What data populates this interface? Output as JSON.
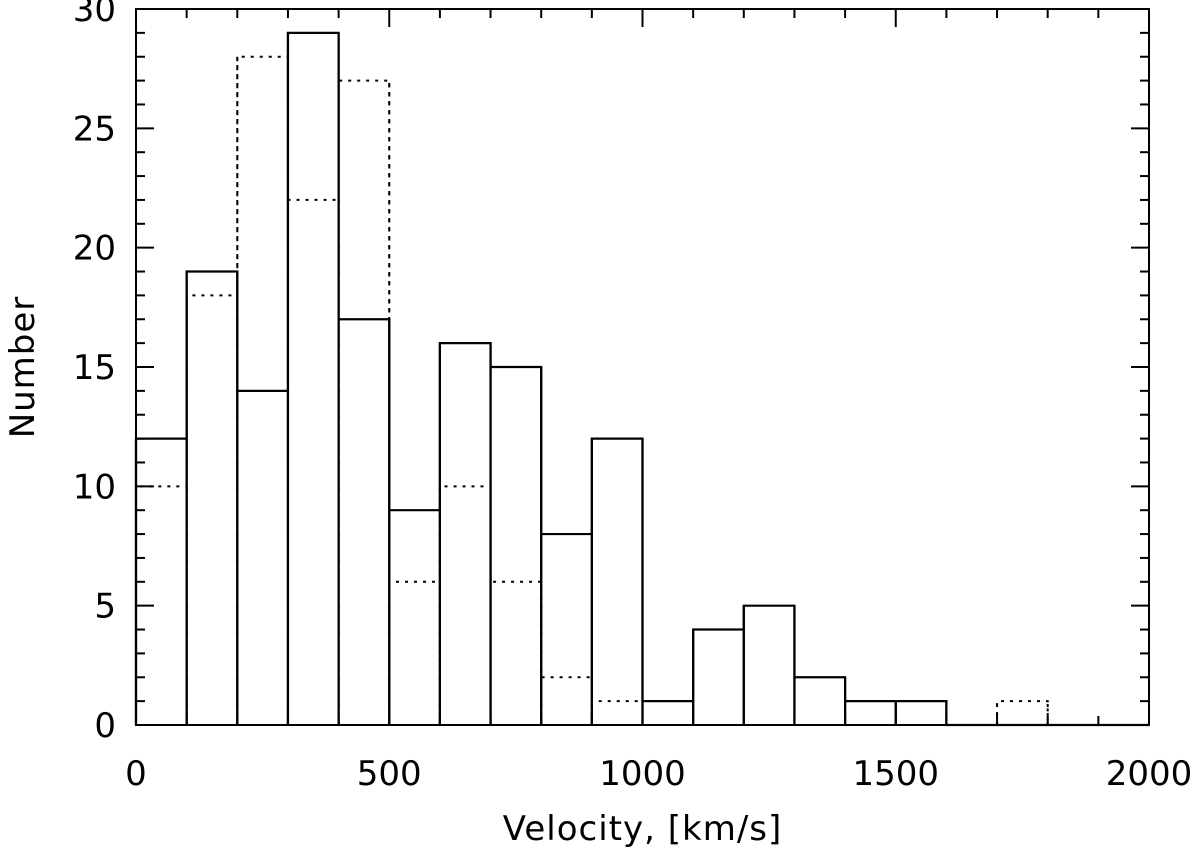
{
  "chart_data": {
    "type": "bar",
    "style": "histogram",
    "xlabel": "Velocity, [km/s]",
    "ylabel": "Number",
    "xlim": [
      0,
      2000
    ],
    "ylim": [
      0,
      30
    ],
    "bin_width": 100,
    "x_ticks": [
      "0",
      "500",
      "1000",
      "1500",
      "2000"
    ],
    "y_ticks": [
      "0",
      "5",
      "10",
      "15",
      "20",
      "25",
      "30"
    ],
    "grid": false,
    "series": [
      {
        "line": "solid",
        "bin_starts": [
          0,
          100,
          200,
          300,
          400,
          500,
          600,
          700,
          800,
          900,
          1000,
          1100,
          1200,
          1300,
          1400,
          1500,
          1600,
          1700,
          1800,
          1900
        ],
        "values": [
          12,
          19,
          14,
          29,
          17,
          9,
          16,
          15,
          8,
          12,
          1,
          4,
          5,
          2,
          1,
          1,
          0,
          0,
          0,
          0
        ]
      },
      {
        "line": "dotted",
        "bin_starts": [
          0,
          100,
          200,
          300,
          400,
          500,
          600,
          700,
          800,
          900,
          1000,
          1100,
          1200,
          1300,
          1400,
          1500,
          1600,
          1700,
          1800,
          1900
        ],
        "values": [
          10,
          18,
          28,
          22,
          27,
          6,
          10,
          6,
          2,
          1,
          0,
          0,
          0,
          0,
          0,
          0,
          0,
          1,
          0,
          0
        ]
      }
    ]
  }
}
